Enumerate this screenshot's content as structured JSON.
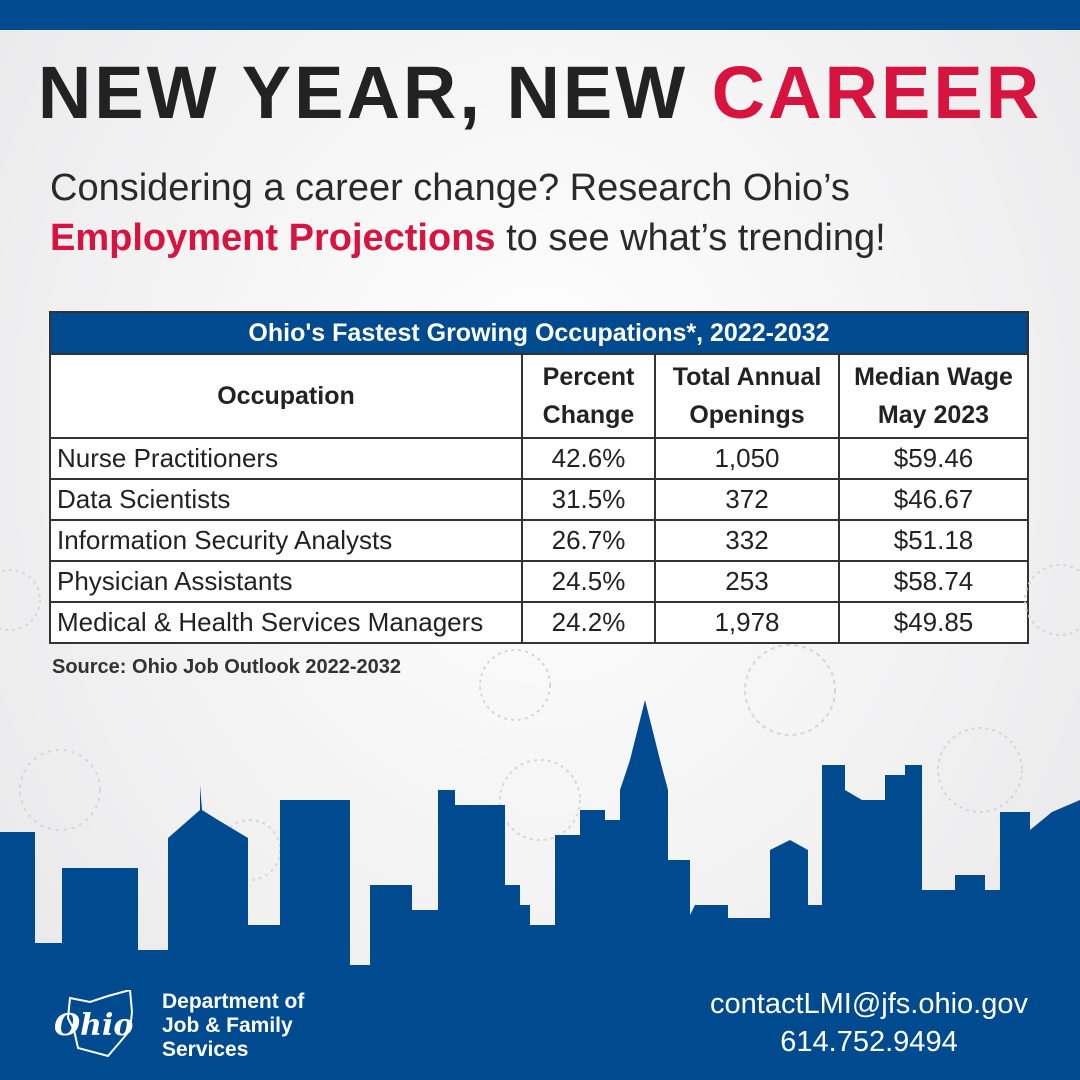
{
  "title": {
    "part1": "NEW YEAR, NEW ",
    "part2": "CAREER"
  },
  "subtitle": {
    "line1": "Considering a career change? Research Ohio’s",
    "highlight": "Employment Projections",
    "line2_rest": " to see what’s trending!"
  },
  "table": {
    "caption": "Ohio's Fastest Growing Occupations*, 2022-2032",
    "headers": {
      "occupation": "Occupation",
      "percent_1": "Percent",
      "percent_2": "Change",
      "openings_1": "Total Annual",
      "openings_2": "Openings",
      "wage_1": "Median Wage",
      "wage_2": "May 2023"
    },
    "rows": [
      {
        "occupation": "Nurse Practitioners",
        "percent": "42.6%",
        "openings": "1,050",
        "wage": "$59.46"
      },
      {
        "occupation": "Data Scientists",
        "percent": "31.5%",
        "openings": "372",
        "wage": "$46.67"
      },
      {
        "occupation": "Information Security Analysts",
        "percent": "26.7%",
        "openings": "332",
        "wage": "$51.18"
      },
      {
        "occupation": "Physician Assistants",
        "percent": "24.5%",
        "openings": "253",
        "wage": "$58.74"
      },
      {
        "occupation": "Medical & Health Services Managers",
        "percent": "24.2%",
        "openings": "1,978",
        "wage": "$49.85"
      }
    ]
  },
  "source": "Source: Ohio Job Outlook 2022-2032",
  "footer": {
    "logo_text": "Ohio",
    "dept_1": "Department of",
    "dept_2": "Job & Family",
    "dept_3": "Services",
    "email": "contactLMI@jfs.ohio.gov",
    "phone": "614.752.9494"
  },
  "colors": {
    "blue": "#004a8f",
    "red": "#d7143f"
  }
}
